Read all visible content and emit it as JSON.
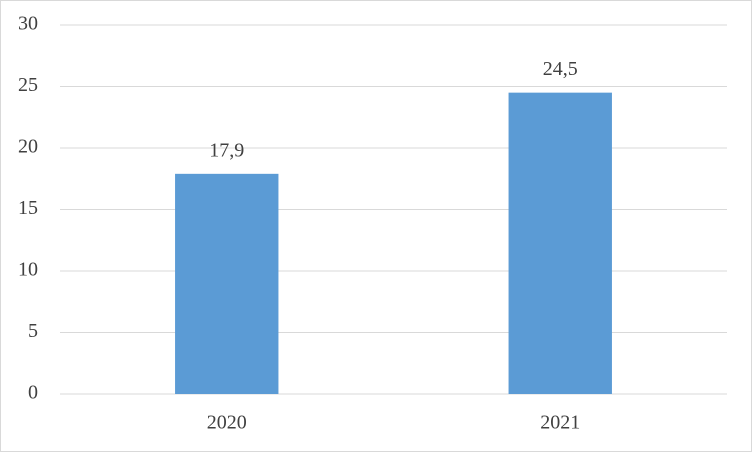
{
  "chart_data": {
    "type": "bar",
    "categories": [
      "2020",
      "2021"
    ],
    "values": [
      17.9,
      24.5
    ],
    "value_labels": [
      "17,9",
      "24,5"
    ],
    "color": "#5b9bd5",
    "ylim": [
      0,
      30
    ],
    "yticks": [
      0,
      5,
      10,
      15,
      20,
      25,
      30
    ],
    "grid": true
  }
}
